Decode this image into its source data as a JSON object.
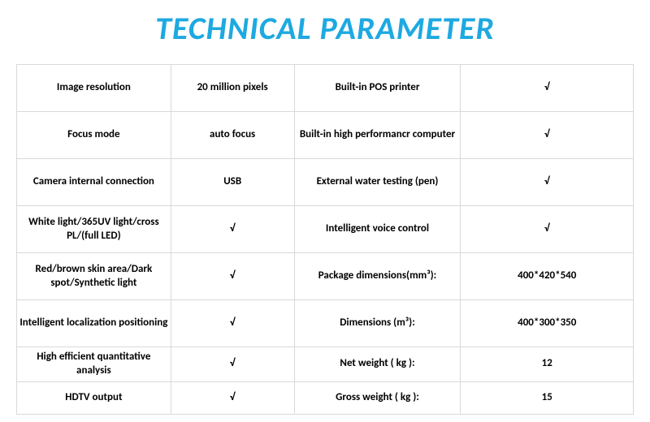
{
  "title": "TECHNICAL PARAMETER",
  "title_color": "#1ea9e1",
  "title_fontsize": 40,
  "border_color": "#d9d9d9",
  "cell_fontsize": 13,
  "cell_color": "#000000",
  "background": "#ffffff",
  "table": {
    "columns": [
      "param_left",
      "value_left",
      "param_right",
      "value_right"
    ],
    "column_widths_pct": [
      25,
      20,
      27,
      28
    ],
    "rows": [
      {
        "h": "tall",
        "c": [
          "Image resolution",
          "20 million pixels",
          "Built-in POS printer",
          "√"
        ]
      },
      {
        "h": "tall",
        "c": [
          "Focus mode",
          "auto focus",
          "Built-in high performancr computer",
          "√"
        ]
      },
      {
        "h": "tall",
        "c": [
          "Camera internal connection",
          "USB",
          "External water testing (pen)",
          "√"
        ]
      },
      {
        "h": "tall",
        "c": [
          "White light/365UV light/cross PL/(full LED)",
          "√",
          "Intelligent voice control",
          "√"
        ]
      },
      {
        "h": "tall",
        "c": [
          "Red/brown  skin area/Dark spot/Synthetic light",
          "√",
          "Package dimensions(mm³):",
          "400*420*540"
        ]
      },
      {
        "h": "tall",
        "c": [
          "Intelligent localization positioning",
          "√",
          "Dimensions (m³):",
          "400*300*350"
        ]
      },
      {
        "h": "short",
        "c": [
          "High efficient quantitative analysis",
          "√",
          "Net weight ( kg ):",
          "12"
        ]
      },
      {
        "h": "short",
        "c": [
          "HDTV output",
          "√",
          "Gross weight ( kg ):",
          "15"
        ]
      }
    ]
  }
}
